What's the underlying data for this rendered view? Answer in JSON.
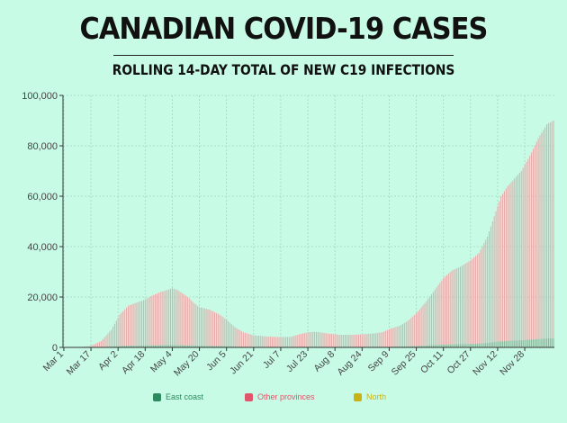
{
  "header": {
    "title": "CANADIAN COVID-19 CASES",
    "subtitle": "ROLLING 14-DAY TOTAL OF NEW C19 INFECTIONS"
  },
  "chart_data": {
    "type": "bar",
    "title": "Canadian COVID-19 Cases",
    "subtitle": "Rolling 14-day total of new C19 infections",
    "xlabel": "",
    "ylabel": "",
    "ylim": [
      0,
      100000
    ],
    "grid": true,
    "yticks": [
      "0",
      "20,000",
      "40,000",
      "60,000",
      "80,000",
      "100,000"
    ],
    "yticks_values": [
      0,
      20000,
      40000,
      60000,
      80000,
      100000
    ],
    "xtick_labels": [
      "Mar 1",
      "Mar 17",
      "Apr 2",
      "Apr 18",
      "May 4",
      "May 20",
      "Jun 5",
      "Jun 21",
      "Jul 7",
      "Jul 23",
      "Aug 8",
      "Aug 24",
      "Sep 9",
      "Sep 25",
      "Oct 11",
      "Oct 27",
      "Nov 12",
      "Nov 28"
    ],
    "xtick_day_index": [
      0,
      16,
      32,
      48,
      64,
      80,
      96,
      112,
      128,
      144,
      160,
      176,
      192,
      208,
      224,
      240,
      256,
      272
    ],
    "n_days": 290,
    "anchor_points": [
      [
        0,
        0
      ],
      [
        10,
        200
      ],
      [
        16,
        600
      ],
      [
        22,
        2500
      ],
      [
        28,
        7000
      ],
      [
        33,
        13000
      ],
      [
        38,
        16500
      ],
      [
        43,
        17800
      ],
      [
        48,
        19000
      ],
      [
        52,
        20500
      ],
      [
        57,
        22000
      ],
      [
        62,
        23000
      ],
      [
        64,
        23500
      ],
      [
        67,
        22800
      ],
      [
        70,
        21500
      ],
      [
        74,
        19500
      ],
      [
        77,
        17500
      ],
      [
        80,
        16000
      ],
      [
        86,
        15000
      ],
      [
        92,
        13000
      ],
      [
        96,
        11000
      ],
      [
        101,
        8000
      ],
      [
        106,
        6000
      ],
      [
        112,
        4800
      ],
      [
        120,
        4300
      ],
      [
        128,
        4100
      ],
      [
        134,
        4200
      ],
      [
        139,
        5200
      ],
      [
        144,
        6000
      ],
      [
        148,
        6200
      ],
      [
        152,
        5900
      ],
      [
        157,
        5400
      ],
      [
        163,
        5000
      ],
      [
        170,
        5000
      ],
      [
        176,
        5200
      ],
      [
        182,
        5500
      ],
      [
        188,
        6000
      ],
      [
        193,
        7500
      ],
      [
        198,
        8500
      ],
      [
        203,
        10500
      ],
      [
        208,
        13500
      ],
      [
        213,
        17500
      ],
      [
        218,
        22000
      ],
      [
        224,
        27500
      ],
      [
        229,
        30500
      ],
      [
        234,
        32000
      ],
      [
        240,
        34500
      ],
      [
        245,
        37500
      ],
      [
        250,
        44000
      ],
      [
        254,
        52000
      ],
      [
        258,
        60000
      ],
      [
        262,
        64000
      ],
      [
        266,
        67000
      ],
      [
        270,
        70000
      ],
      [
        275,
        76000
      ],
      [
        280,
        83000
      ],
      [
        285,
        88500
      ],
      [
        289,
        90000
      ]
    ],
    "series": [
      {
        "name": "East coast",
        "color": "#2b8a5e",
        "share": "small"
      },
      {
        "name": "Other provinces",
        "color": "#e0556a",
        "share": "large"
      },
      {
        "name": "North",
        "color": "#c7b414",
        "share": "tiny"
      }
    ]
  },
  "legend": {
    "items": [
      {
        "label": "East coast",
        "color": "#2b8a5e"
      },
      {
        "label": "Other provinces",
        "color": "#e0556a"
      },
      {
        "label": "North",
        "color": "#c7b414"
      }
    ]
  }
}
